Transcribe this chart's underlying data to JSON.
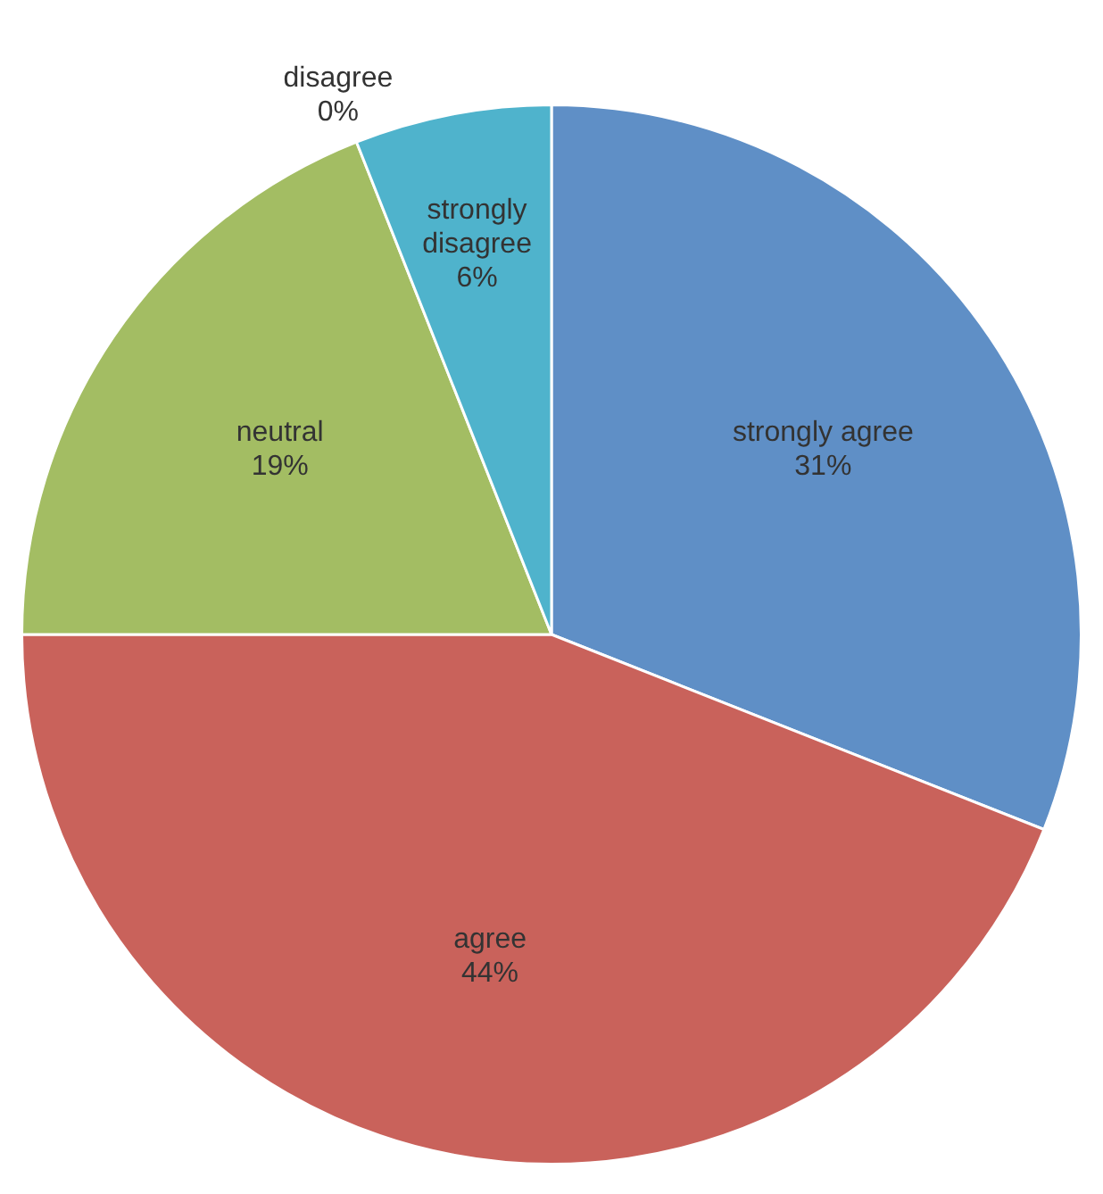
{
  "chart_data": {
    "type": "pie",
    "categories": [
      "strongly agree",
      "agree",
      "neutral",
      "disagree",
      "strongly disagree"
    ],
    "values": [
      31,
      44,
      19,
      0,
      6
    ],
    "colors": [
      "#5f8fc6",
      "#c9625b",
      "#a3bd63",
      "#8064a2",
      "#4fb3cc"
    ],
    "value_labels": [
      "31%",
      "44%",
      "19%",
      "0%",
      "6%"
    ],
    "legend": false
  }
}
